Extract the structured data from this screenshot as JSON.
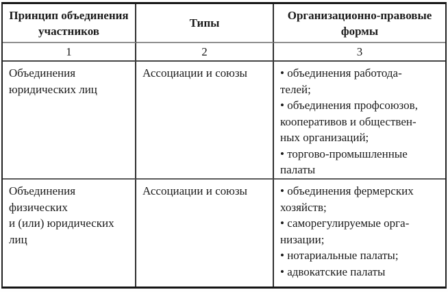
{
  "table": {
    "columns": [
      {
        "number": "1",
        "title_lines": [
          "Принцип объединения",
          "участников"
        ]
      },
      {
        "number": "2",
        "title_lines": [
          "Типы"
        ]
      },
      {
        "number": "3",
        "title_lines": [
          "Организационно-правовые",
          "формы"
        ]
      }
    ],
    "rows": [
      {
        "principle_lines": [
          "Объединения",
          "юридических лиц"
        ],
        "type_lines": [
          "Ассоциации и союзы"
        ],
        "forms_lines": [
          "• объединения работода-",
          "телей;",
          "• объединения профсоюзов,",
          "кооперативов и обществен-",
          "ных организаций;",
          "• торгово-промышленные",
          "палаты"
        ]
      },
      {
        "principle_lines": [
          "Объединения",
          "физических",
          "и (или) юридических",
          "лиц"
        ],
        "type_lines": [
          "Ассоциации и союзы"
        ],
        "forms_lines": [
          "• объединения фермерских",
          "хозяйств;",
          "• саморегулируемые орга-",
          "низации;",
          "• нотариальные палаты;",
          "• адвокатские палаты"
        ]
      }
    ],
    "colors": {
      "text": "#1a1a1a",
      "outer_border": "#141414",
      "vertical_line": "#2e2e2e",
      "header_underline": "#909090",
      "row_divider": "#5a5a5a",
      "background": "#ffffff"
    }
  }
}
